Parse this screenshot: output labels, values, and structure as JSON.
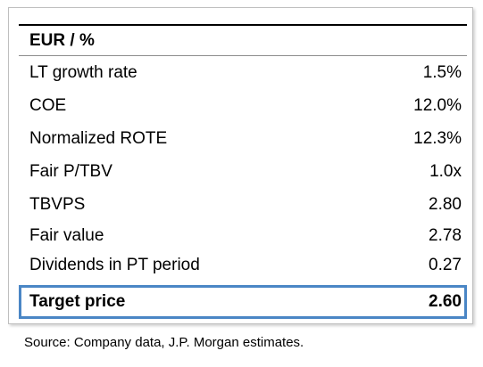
{
  "table": {
    "header": "EUR / %",
    "rows": [
      {
        "label": "LT growth rate",
        "value": "1.5%"
      },
      {
        "label": "COE",
        "value": "12.0%"
      },
      {
        "label": "Normalized ROTE",
        "value": "12.3%"
      },
      {
        "label": "Fair P/TBV",
        "value": "1.0x"
      },
      {
        "label": "TBVPS",
        "value": "2.80"
      },
      {
        "label": "Fair value",
        "value": "2.78"
      },
      {
        "label": "Dividends in PT period",
        "value": "0.27"
      }
    ],
    "target": {
      "label": "Target price",
      "value": "2.60"
    }
  },
  "source": "Source: Company data, J.P. Morgan estimates.",
  "colors": {
    "highlight_border": "#4a86c5",
    "text": "#000000"
  }
}
